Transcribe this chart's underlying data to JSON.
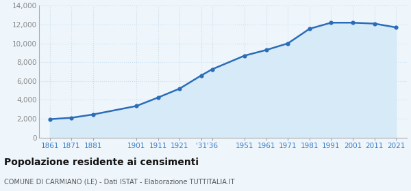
{
  "years": [
    1861,
    1871,
    1881,
    1901,
    1911,
    1921,
    1931,
    1936,
    1951,
    1961,
    1971,
    1981,
    1991,
    2001,
    2011,
    2021
  ],
  "population": [
    1950,
    2100,
    2450,
    3350,
    4250,
    5200,
    6600,
    7250,
    8700,
    9300,
    10000,
    11550,
    12200,
    12200,
    12100,
    11700
  ],
  "line_color": "#2b6cb8",
  "fill_color": "#d6eaf8",
  "marker_color": "#2b6cb8",
  "bg_color": "#eef6fc",
  "grid_color": "#c8dff0",
  "title": "Popolazione residente ai censimenti",
  "subtitle": "COMUNE DI CARMIANO (LE) - Dati ISTAT - Elaborazione TUTTITALIA.IT",
  "ylim": [
    0,
    14000
  ],
  "yticks": [
    0,
    2000,
    4000,
    6000,
    8000,
    10000,
    12000,
    14000
  ],
  "x_tick_positions": [
    1861,
    1871,
    1881,
    1901,
    1911,
    1921,
    1931,
    1936,
    1951,
    1961,
    1971,
    1981,
    1991,
    2001,
    2011,
    2021
  ],
  "x_tick_labels": [
    "1861",
    "1871",
    "1881",
    "1901",
    "1911",
    "1921",
    "'31",
    "'36",
    "1951",
    "1961",
    "1971",
    "1981",
    "1991",
    "2001",
    "2011",
    "2021"
  ],
  "x_label_color": "#3a7cc7",
  "y_label_color": "#888888",
  "title_color": "#111111",
  "subtitle_color": "#555555"
}
